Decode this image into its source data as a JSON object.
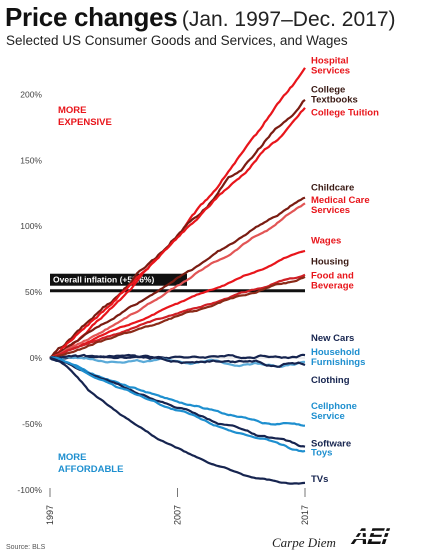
{
  "title": "Price changes",
  "title_period": "(Jan. 1997–Dec. 2017)",
  "subtitle": "Selected US Consumer Goods and Services, and Wages",
  "source": "Source: BLS",
  "credit": "Carpe Diem",
  "logo_text": "AEI",
  "region_labels": {
    "more_expensive": [
      "MORE",
      "EXPENSIVE"
    ],
    "more_affordable": [
      "MORE",
      "AFFORDABLE"
    ]
  },
  "colors": {
    "red": "#e8151b",
    "dark_red": "#7a1c12",
    "mid_red": "#c9282b",
    "navy": "#16244f",
    "blue": "#1e8fcf",
    "light_blue": "#5aaad8",
    "gray_line": "#cccccc"
  },
  "chart_data": {
    "type": "line",
    "x_start": 1997,
    "x_end": 2017,
    "x_ticks": [
      "1997",
      "2007",
      "2017"
    ],
    "y_ticks": [
      "200%",
      "150%",
      "100%",
      "50%",
      "0%",
      "-50%",
      "-100%"
    ],
    "y_tick_values": [
      200,
      150,
      100,
      50,
      0,
      -50,
      -100
    ],
    "ylim": [
      -100,
      225
    ],
    "grid": false,
    "reference_line": {
      "label": "Overall inflation (+55.6%)",
      "value": 55.6
    },
    "series": [
      {
        "name": "Hospital Services",
        "label": [
          "Hospital",
          "Services"
        ],
        "color": "#e8151b",
        "label_color": "#e8151b",
        "final": 221,
        "curve": 1.25,
        "wobble": 3,
        "label_y": 220
      },
      {
        "name": "College Textbooks",
        "label": [
          "College",
          "Textbooks"
        ],
        "color": "#7a1c12",
        "label_color": "#3a1a14",
        "final": 195,
        "curve": 1.05,
        "wobble": 4,
        "label_y": 198
      },
      {
        "name": "College Tuition",
        "label": [
          "College Tuition"
        ],
        "color": "#e8151b",
        "label_color": "#e8151b",
        "final": 188,
        "curve": 1.05,
        "wobble": 3,
        "label_y": 184
      },
      {
        "name": "Childcare",
        "label": [
          "Childcare"
        ],
        "color": "#7a1c12",
        "label_color": "#3a1a14",
        "final": 122,
        "curve": 1.0,
        "wobble": 2,
        "label_y": 127
      },
      {
        "name": "Medical Care Services",
        "label": [
          "Medical Care",
          "Services"
        ],
        "color": "#e25555",
        "label_color": "#e8151b",
        "final": 117,
        "curve": 1.1,
        "wobble": 2,
        "label_y": 114
      },
      {
        "name": "Wages",
        "label": [
          "Wages"
        ],
        "color": "#e8151b",
        "label_color": "#e8151b",
        "final": 82,
        "curve": 1.0,
        "wobble": 1.5,
        "label_y": 87
      },
      {
        "name": "Housing",
        "label": [
          "Housing"
        ],
        "color": "#d01f25",
        "label_color": "#3a1a14",
        "final": 63,
        "curve": 0.9,
        "wobble": 1.5,
        "label_y": 71
      },
      {
        "name": "Food and Beverage",
        "label": [
          "Food and",
          "Beverage"
        ],
        "color": "#8a2a18",
        "label_color": "#e8151b",
        "final": 62,
        "curve": 1.0,
        "wobble": 2,
        "label_y": 57
      },
      {
        "name": "New Cars",
        "label": [
          "New Cars"
        ],
        "color": "#16244f",
        "label_color": "#16244f",
        "final": 2,
        "curve": 1.0,
        "wobble": 2.5,
        "label_y": 13
      },
      {
        "name": "Household Furnishings",
        "label": [
          "Household",
          "Furnishings"
        ],
        "color": "#5aaad8",
        "label_color": "#1e8fcf",
        "final": -5,
        "curve": 1.0,
        "wobble": 2.5,
        "label_y": -1
      },
      {
        "name": "Clothing",
        "label": [
          "Clothing"
        ],
        "color": "#16244f",
        "label_color": "#16244f",
        "final": -4,
        "curve": 1.0,
        "wobble": 3,
        "label_y": -19
      },
      {
        "name": "Cellphone Service",
        "label": [
          "Cellphone",
          "Service"
        ],
        "color": "#1e8fcf",
        "label_color": "#1e8fcf",
        "final": -52,
        "curve": 0.7,
        "wobble": 2,
        "label_y": -42
      },
      {
        "name": "Software",
        "label": [
          "Software"
        ],
        "color": "#16244f",
        "label_color": "#16244f",
        "final": -67,
        "curve": 0.85,
        "wobble": 2,
        "label_y": -67
      },
      {
        "name": "Toys",
        "label": [
          "Toys"
        ],
        "color": "#1e8fcf",
        "label_color": "#1e8fcf",
        "final": -71,
        "curve": 0.85,
        "wobble": 2,
        "label_y": -74
      },
      {
        "name": "TVs",
        "label": [
          "TVs"
        ],
        "color": "#16244f",
        "label_color": "#16244f",
        "final": -96,
        "curve": 0.55,
        "wobble": 1.5,
        "label_y": -94
      }
    ]
  }
}
